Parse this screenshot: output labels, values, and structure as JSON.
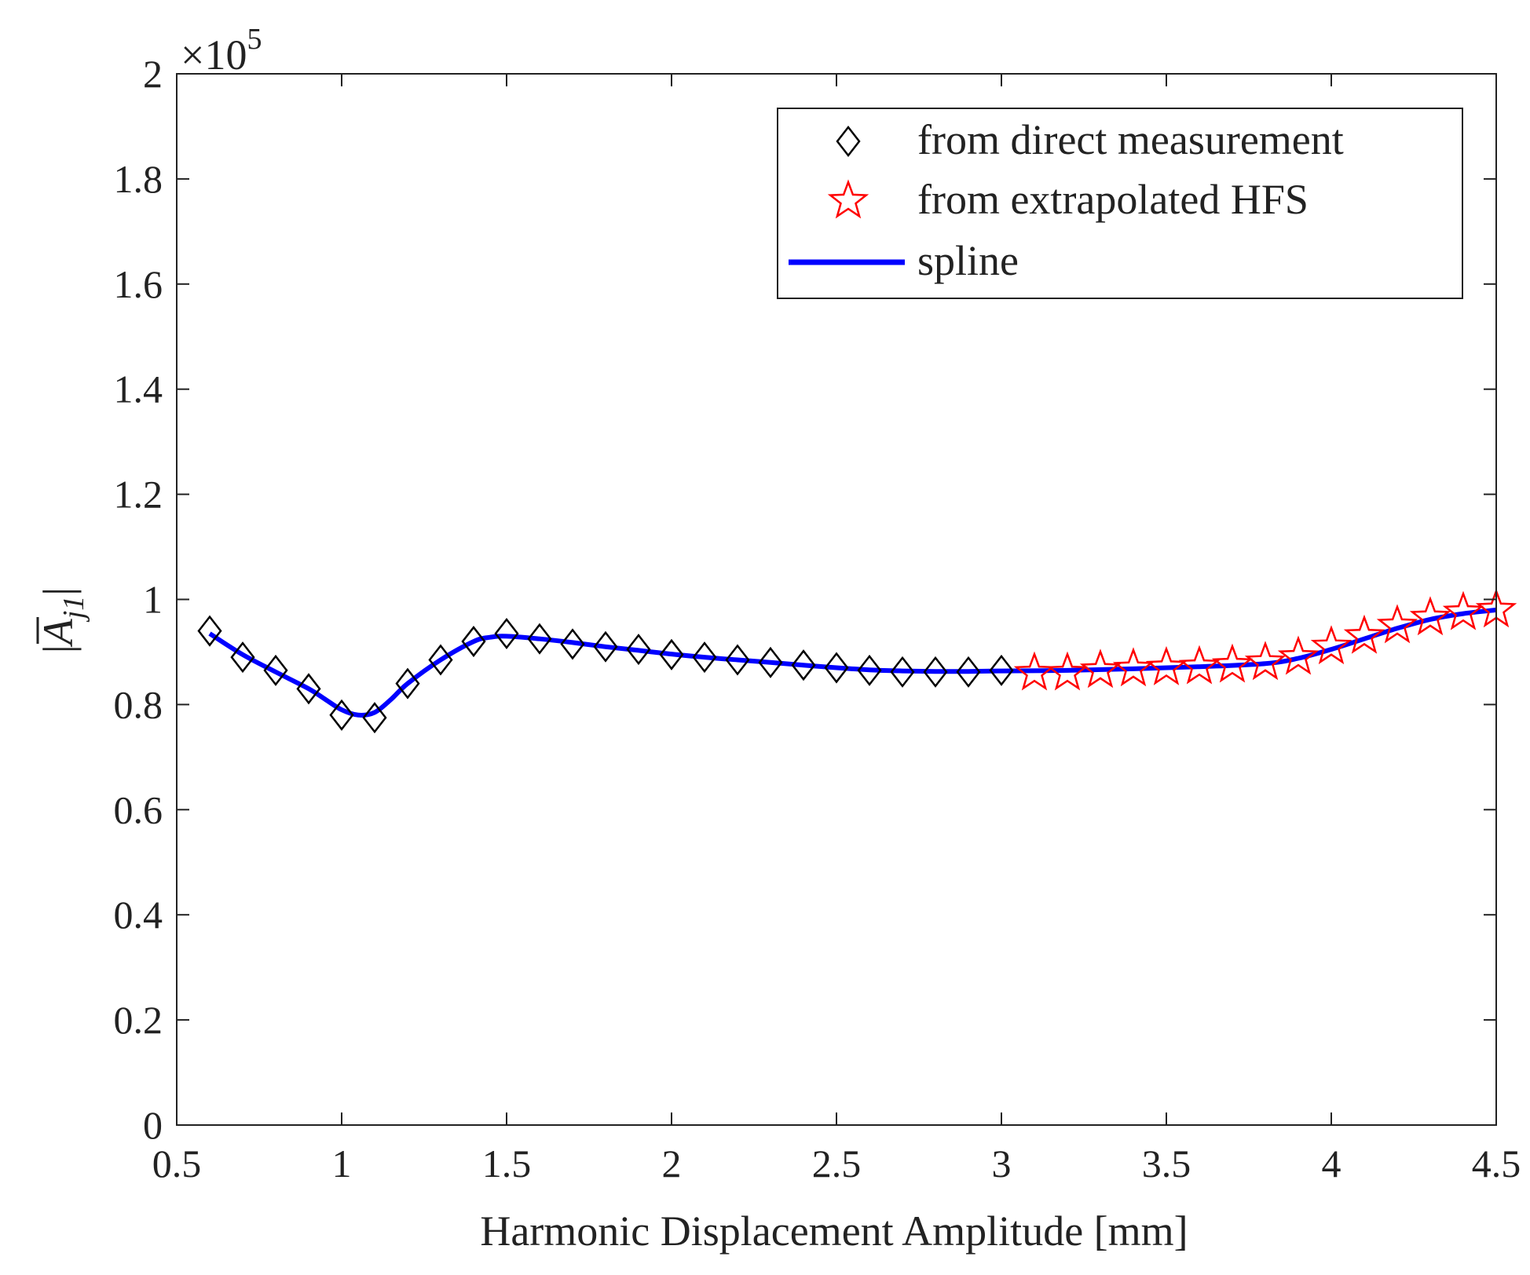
{
  "chart_data": {
    "type": "line",
    "title": "",
    "xlabel": "Harmonic Displacement Amplitude [mm]",
    "ylabel": {
      "prefix": "|",
      "symbol": "A",
      "subscript": "j1",
      "suffix": "|"
    },
    "xlim": [
      0.5,
      4.5
    ],
    "ylim": [
      0,
      2
    ],
    "y_scale_label": {
      "base": "×10",
      "exponent": "5"
    },
    "x_ticks": [
      {
        "value": 0.5,
        "label": "0.5"
      },
      {
        "value": 1,
        "label": "1"
      },
      {
        "value": 1.5,
        "label": "1.5"
      },
      {
        "value": 2,
        "label": "2"
      },
      {
        "value": 2.5,
        "label": "2.5"
      },
      {
        "value": 3,
        "label": "3"
      },
      {
        "value": 3.5,
        "label": "3.5"
      },
      {
        "value": 4,
        "label": "4"
      },
      {
        "value": 4.5,
        "label": "4.5"
      }
    ],
    "y_ticks": [
      {
        "value": 0,
        "label": "0"
      },
      {
        "value": 0.2,
        "label": "0.2"
      },
      {
        "value": 0.4,
        "label": "0.4"
      },
      {
        "value": 0.6,
        "label": "0.6"
      },
      {
        "value": 0.8,
        "label": "0.8"
      },
      {
        "value": 1,
        "label": "1"
      },
      {
        "value": 1.2,
        "label": "1.2"
      },
      {
        "value": 1.4,
        "label": "1.4"
      },
      {
        "value": 1.6,
        "label": "1.6"
      },
      {
        "value": 1.8,
        "label": "1.8"
      },
      {
        "value": 2,
        "label": "2"
      }
    ],
    "grid": false,
    "legend_position": "top-right",
    "series": [
      {
        "name": "from direct measurement",
        "kind": "marker",
        "marker": "diamond",
        "color": "#000000",
        "x": [
          0.6,
          0.7,
          0.8,
          0.9,
          1.0,
          1.1,
          1.2,
          1.3,
          1.4,
          1.5,
          1.6,
          1.7,
          1.8,
          1.9,
          2.0,
          2.1,
          2.2,
          2.3,
          2.4,
          2.5,
          2.6,
          2.7,
          2.8,
          2.9,
          3.0
        ],
        "y": [
          0.94,
          0.89,
          0.865,
          0.83,
          0.78,
          0.775,
          0.84,
          0.885,
          0.92,
          0.935,
          0.925,
          0.915,
          0.91,
          0.905,
          0.895,
          0.89,
          0.885,
          0.88,
          0.875,
          0.87,
          0.865,
          0.862,
          0.862,
          0.862,
          0.865
        ]
      },
      {
        "name": "from extrapolated HFS",
        "kind": "marker",
        "marker": "star",
        "color": "#ff0000",
        "x": [
          3.1,
          3.2,
          3.3,
          3.4,
          3.5,
          3.6,
          3.7,
          3.8,
          3.9,
          4.0,
          4.1,
          4.2,
          4.3,
          4.4,
          4.5
        ],
        "y": [
          0.86,
          0.86,
          0.865,
          0.868,
          0.87,
          0.872,
          0.875,
          0.88,
          0.89,
          0.91,
          0.93,
          0.95,
          0.965,
          0.975,
          0.98
        ]
      },
      {
        "name": "spline",
        "kind": "line",
        "color": "#0000ff",
        "x": [
          0.6,
          0.7,
          0.8,
          0.9,
          0.95,
          1.0,
          1.05,
          1.1,
          1.15,
          1.2,
          1.3,
          1.4,
          1.45,
          1.5,
          1.6,
          1.7,
          1.8,
          1.9,
          2.0,
          2.1,
          2.2,
          2.3,
          2.4,
          2.5,
          2.6,
          2.7,
          2.8,
          2.9,
          3.0,
          3.2,
          3.4,
          3.6,
          3.8,
          3.9,
          4.0,
          4.1,
          4.2,
          4.3,
          4.4,
          4.5
        ],
        "y": [
          0.935,
          0.895,
          0.862,
          0.83,
          0.81,
          0.79,
          0.78,
          0.785,
          0.81,
          0.84,
          0.885,
          0.92,
          0.928,
          0.93,
          0.925,
          0.918,
          0.91,
          0.903,
          0.896,
          0.89,
          0.885,
          0.88,
          0.875,
          0.87,
          0.866,
          0.864,
          0.863,
          0.863,
          0.864,
          0.865,
          0.868,
          0.872,
          0.878,
          0.888,
          0.905,
          0.925,
          0.945,
          0.962,
          0.973,
          0.98
        ]
      }
    ]
  }
}
